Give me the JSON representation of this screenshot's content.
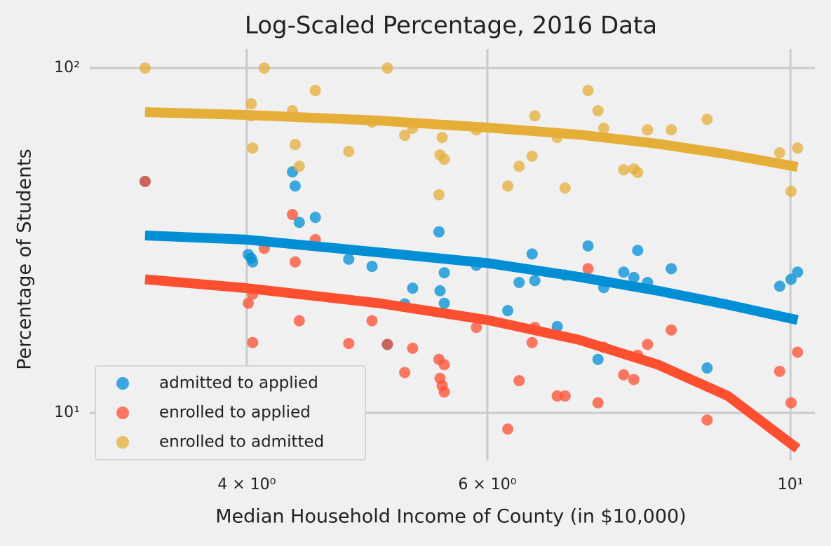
{
  "chart_data": {
    "type": "scatter",
    "title": "Log-Scaled Percentage, 2016 Data",
    "x_label": "Median Household Income of County (in $10,000)",
    "y_label": "Percentage of Students",
    "xscale": "log",
    "yscale": "log",
    "xlim": [
      3.07,
      10.42
    ],
    "ylim": [
      7.28,
      113.5
    ],
    "xticks": [
      {
        "value": 4,
        "label": "4 × 10⁰"
      },
      {
        "value": 6,
        "label": "6 × 10⁰"
      },
      {
        "value": 10,
        "label": "10¹"
      }
    ],
    "yticks": [
      {
        "value": 10,
        "label": "10¹"
      },
      {
        "value": 100,
        "label": "10²"
      }
    ],
    "grid": true,
    "legend": "lower left",
    "series": [
      {
        "name": "admitted to applied",
        "color": "#008fd5",
        "x": [
          3.37,
          4.01,
          4.03,
          4.04,
          4.32,
          4.34,
          4.37,
          4.49,
          4.75,
          4.94,
          5.07,
          5.22,
          5.29,
          5.53,
          5.54,
          5.58,
          5.58,
          5.89,
          6.21,
          6.33,
          6.47,
          6.5,
          6.75,
          6.84,
          7.11,
          7.23,
          7.3,
          7.55,
          7.68,
          7.73,
          7.86,
          8.18,
          8.69,
          9.82,
          10.01,
          10.12
        ],
        "values": [
          46.9,
          28.8,
          28.1,
          27.4,
          50.0,
          45.5,
          35.7,
          36.9,
          27.9,
          26.6,
          15.8,
          20.7,
          23.0,
          33.5,
          22.6,
          20.8,
          25.5,
          26.8,
          19.8,
          23.9,
          28.9,
          24.2,
          17.8,
          25.1,
          30.5,
          14.3,
          23.1,
          25.6,
          24.7,
          29.6,
          23.9,
          26.2,
          13.5,
          23.3,
          24.4,
          25.6
        ]
      },
      {
        "name": "enrolled to applied",
        "color": "#fc4f30",
        "x": [
          3.37,
          4.01,
          4.04,
          4.04,
          4.12,
          4.32,
          4.34,
          4.37,
          4.49,
          4.75,
          4.94,
          5.07,
          5.22,
          5.29,
          5.53,
          5.54,
          5.56,
          5.58,
          5.58,
          5.89,
          6.21,
          6.33,
          6.47,
          6.5,
          6.75,
          6.84,
          7.11,
          7.23,
          7.3,
          7.55,
          7.68,
          7.73,
          7.86,
          8.18,
          8.69,
          9.82,
          10.01,
          10.12
        ],
        "values": [
          46.9,
          20.8,
          22.1,
          16.0,
          30.0,
          37.6,
          27.4,
          18.5,
          31.8,
          15.9,
          18.5,
          15.8,
          13.1,
          15.4,
          14.3,
          12.6,
          12.0,
          13.8,
          11.5,
          17.7,
          8.98,
          12.4,
          16.0,
          17.7,
          11.2,
          11.2,
          26.2,
          10.7,
          15.5,
          12.9,
          12.5,
          14.7,
          15.8,
          17.4,
          9.54,
          13.2,
          10.7,
          15.0
        ]
      },
      {
        "name": "enrolled to admitted",
        "color": "#e5ae38",
        "x": [
          3.37,
          4.03,
          4.03,
          4.04,
          4.12,
          4.32,
          4.34,
          4.37,
          4.49,
          4.75,
          4.94,
          5.07,
          5.22,
          5.29,
          5.53,
          5.54,
          5.56,
          5.58,
          5.89,
          6.21,
          6.33,
          6.47,
          6.5,
          6.75,
          6.84,
          7.11,
          7.23,
          7.3,
          7.55,
          7.68,
          7.73,
          7.86,
          8.18,
          8.69,
          9.82,
          10.01,
          10.12
        ],
        "values": [
          100,
          78.8,
          72.7,
          58.6,
          100,
          75.2,
          60.0,
          51.9,
          86.1,
          57.3,
          69.7,
          100,
          63.8,
          66.9,
          42.9,
          56.0,
          62.9,
          54.4,
          66.2,
          45.5,
          51.9,
          55.5,
          72.7,
          62.9,
          44.9,
          86.1,
          75.2,
          66.9,
          50.7,
          51.0,
          49.8,
          66.2,
          66.2,
          71.0,
          56.8,
          43.9,
          58.6
        ]
      }
    ],
    "fits": [
      {
        "color": "#008fd5",
        "x": [
          3.37,
          4,
          5,
          6,
          7,
          8,
          9,
          10.12
        ],
        "values": [
          32.7,
          31.8,
          29.2,
          27.2,
          24.8,
          22.6,
          20.6,
          18.6
        ]
      },
      {
        "color": "#fc4f30",
        "x": [
          3.37,
          4,
          5,
          6,
          7,
          8,
          9,
          10.12
        ],
        "values": [
          24.4,
          23.0,
          20.8,
          18.6,
          16.3,
          13.8,
          11.2,
          7.88
        ]
      },
      {
        "color": "#e5ae38",
        "x": [
          3.37,
          4,
          5,
          6,
          7,
          8,
          9,
          10.12
        ],
        "values": [
          74.5,
          73.1,
          70.4,
          67.2,
          64.1,
          60.3,
          56.2,
          51.7
        ]
      }
    ]
  }
}
